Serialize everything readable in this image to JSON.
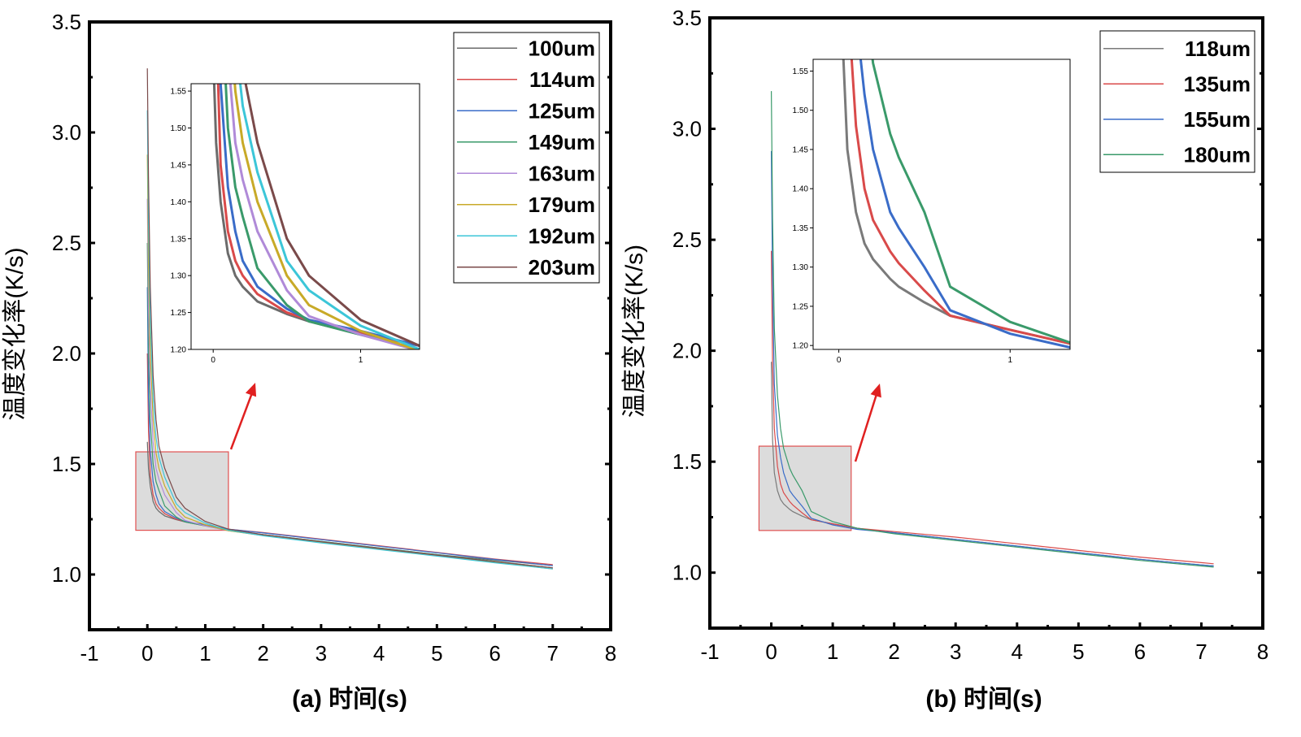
{
  "chart_data": [
    {
      "type": "line",
      "panel_label": "(a) 时间(s)",
      "xlabel": "(a) 时间(s)",
      "ylabel": "温度变化率(K/s)",
      "xlim": [
        -1,
        8
      ],
      "ylim": [
        0.75,
        3.5
      ],
      "xticks": [
        "-1",
        "0",
        "1",
        "2",
        "3",
        "4",
        "5",
        "6",
        "7",
        "8"
      ],
      "yticks": [
        "1.0",
        "1.5",
        "2.0",
        "2.5",
        "3.0",
        "3.5"
      ],
      "legend_position": "top-right",
      "x": [
        0,
        0.02,
        0.05,
        0.1,
        0.15,
        0.2,
        0.3,
        0.5,
        0.65,
        1.0,
        1.4,
        2.0,
        3.0,
        4.0,
        5.0,
        6.0,
        7.0
      ],
      "series": [
        {
          "name": "100um",
          "color": "#6b6b6b",
          "values": [
            1.6,
            1.48,
            1.4,
            1.33,
            1.3,
            1.285,
            1.265,
            1.248,
            1.238,
            1.22,
            1.2,
            1.18,
            1.15,
            1.12,
            1.09,
            1.065,
            1.04
          ]
        },
        {
          "name": "114um",
          "color": "#d94a4a",
          "values": [
            2.0,
            1.65,
            1.45,
            1.36,
            1.32,
            1.3,
            1.275,
            1.25,
            1.24,
            1.222,
            1.205,
            1.19,
            1.16,
            1.13,
            1.1,
            1.07,
            1.045
          ]
        },
        {
          "name": "125um",
          "color": "#3a6cc8",
          "values": [
            2.3,
            1.8,
            1.56,
            1.42,
            1.36,
            1.32,
            1.285,
            1.255,
            1.24,
            1.225,
            1.205,
            1.188,
            1.158,
            1.128,
            1.098,
            1.068,
            1.04
          ]
        },
        {
          "name": "149um",
          "color": "#3a9a6a",
          "values": [
            2.5,
            2.0,
            1.7,
            1.5,
            1.42,
            1.38,
            1.31,
            1.26,
            1.238,
            1.22,
            1.2,
            1.18,
            1.15,
            1.12,
            1.09,
            1.06,
            1.03
          ]
        },
        {
          "name": "163um",
          "color": "#b08ad8",
          "values": [
            2.7,
            2.2,
            1.85,
            1.6,
            1.48,
            1.43,
            1.36,
            1.28,
            1.245,
            1.22,
            1.198,
            1.178,
            1.148,
            1.118,
            1.088,
            1.058,
            1.03
          ]
        },
        {
          "name": "179um",
          "color": "#c8aa28",
          "values": [
            2.9,
            2.4,
            2.0,
            1.7,
            1.55,
            1.48,
            1.4,
            1.3,
            1.26,
            1.225,
            1.198,
            1.176,
            1.145,
            1.115,
            1.085,
            1.055,
            1.025
          ]
        },
        {
          "name": "192um",
          "color": "#3cc6d8",
          "values": [
            3.1,
            2.6,
            2.15,
            1.8,
            1.62,
            1.53,
            1.44,
            1.32,
            1.28,
            1.232,
            1.2,
            1.175,
            1.143,
            1.113,
            1.083,
            1.053,
            1.025
          ]
        },
        {
          "name": "203um",
          "color": "#7a4a4a",
          "values": [
            3.29,
            2.8,
            2.3,
            1.9,
            1.7,
            1.58,
            1.48,
            1.35,
            1.3,
            1.24,
            1.205,
            1.18,
            1.148,
            1.118,
            1.088,
            1.058,
            1.03
          ]
        }
      ],
      "inset": {
        "xlim": [
          -0.15,
          1.4
        ],
        "ylim": [
          1.2,
          1.56
        ],
        "xticks": [
          "0",
          "1"
        ],
        "yticks": [
          "1.20",
          "1.25",
          "1.30",
          "1.35",
          "1.40",
          "1.45",
          "1.50",
          "1.55"
        ],
        "zoom_box": {
          "x": [
            -0.2,
            1.4
          ],
          "y": [
            1.2,
            1.555
          ]
        }
      }
    },
    {
      "type": "line",
      "panel_label": "(b) 时间(s)",
      "xlabel": "(b) 时间(s)",
      "ylabel": "温度变化率(K/s)",
      "xlim": [
        -1,
        8
      ],
      "ylim": [
        0.75,
        3.5
      ],
      "xticks": [
        "-1",
        "0",
        "1",
        "2",
        "3",
        "4",
        "5",
        "6",
        "7",
        "8"
      ],
      "yticks": [
        "1.0",
        "1.5",
        "2.0",
        "2.5",
        "3.0",
        "3.5"
      ],
      "legend_position": "top-right",
      "x": [
        0,
        0.02,
        0.05,
        0.1,
        0.15,
        0.2,
        0.3,
        0.35,
        0.5,
        0.65,
        1.0,
        1.4,
        2.0,
        3.0,
        4.0,
        5.0,
        6.0,
        7.0,
        7.2
      ],
      "series": [
        {
          "name": "118um",
          "color": "#7a7a7a",
          "values": [
            1.95,
            1.6,
            1.45,
            1.37,
            1.33,
            1.31,
            1.285,
            1.275,
            1.255,
            1.238,
            1.22,
            1.2,
            1.18,
            1.15,
            1.12,
            1.09,
            1.06,
            1.035,
            1.03
          ]
        },
        {
          "name": "135um",
          "color": "#d94a4a",
          "values": [
            2.45,
            1.95,
            1.65,
            1.48,
            1.4,
            1.36,
            1.32,
            1.305,
            1.27,
            1.238,
            1.22,
            1.2,
            1.185,
            1.16,
            1.13,
            1.1,
            1.07,
            1.045,
            1.04
          ]
        },
        {
          "name": "155um",
          "color": "#3a6cc8",
          "values": [
            2.9,
            2.3,
            1.85,
            1.62,
            1.52,
            1.45,
            1.37,
            1.35,
            1.3,
            1.245,
            1.215,
            1.195,
            1.18,
            1.15,
            1.12,
            1.09,
            1.06,
            1.035,
            1.03
          ]
        },
        {
          "name": "180um",
          "color": "#3a9a6a",
          "values": [
            3.17,
            2.6,
            2.1,
            1.8,
            1.65,
            1.56,
            1.47,
            1.44,
            1.37,
            1.275,
            1.23,
            1.2,
            1.175,
            1.145,
            1.115,
            1.085,
            1.055,
            1.03,
            1.025
          ]
        }
      ],
      "inset": {
        "xlim": [
          -0.15,
          1.35
        ],
        "ylim": [
          1.195,
          1.565
        ],
        "xticks": [
          "0",
          "1"
        ],
        "yticks": [
          "1.20",
          "1.25",
          "1.30",
          "1.35",
          "1.40",
          "1.45",
          "1.50",
          "1.55"
        ],
        "zoom_box": {
          "x": [
            -0.2,
            1.3
          ],
          "y": [
            1.19,
            1.57
          ]
        }
      }
    }
  ]
}
